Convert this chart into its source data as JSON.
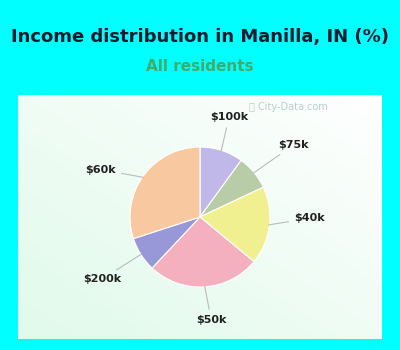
{
  "title": "Income distribution in Manilla, IN (%)",
  "subtitle": "All residents",
  "labels": [
    "$100k",
    "$75k",
    "$40k",
    "$50k",
    "$200k",
    "$60k"
  ],
  "sizes": [
    10,
    8,
    18,
    26,
    8,
    30
  ],
  "colors": [
    "#c0b8e8",
    "#b8cca8",
    "#f0f090",
    "#f4b0be",
    "#9898d8",
    "#f8c8a0"
  ],
  "startangle": 90,
  "title_fontsize": 13,
  "subtitle_fontsize": 11,
  "subtitle_color": "#44aa66",
  "title_color": "#1a1a2e",
  "watermark": "City-Data.com",
  "bg_outer": "#00ffff",
  "label_fontsize": 8,
  "label_color": "#222222",
  "line_color": "#bbbbbb"
}
